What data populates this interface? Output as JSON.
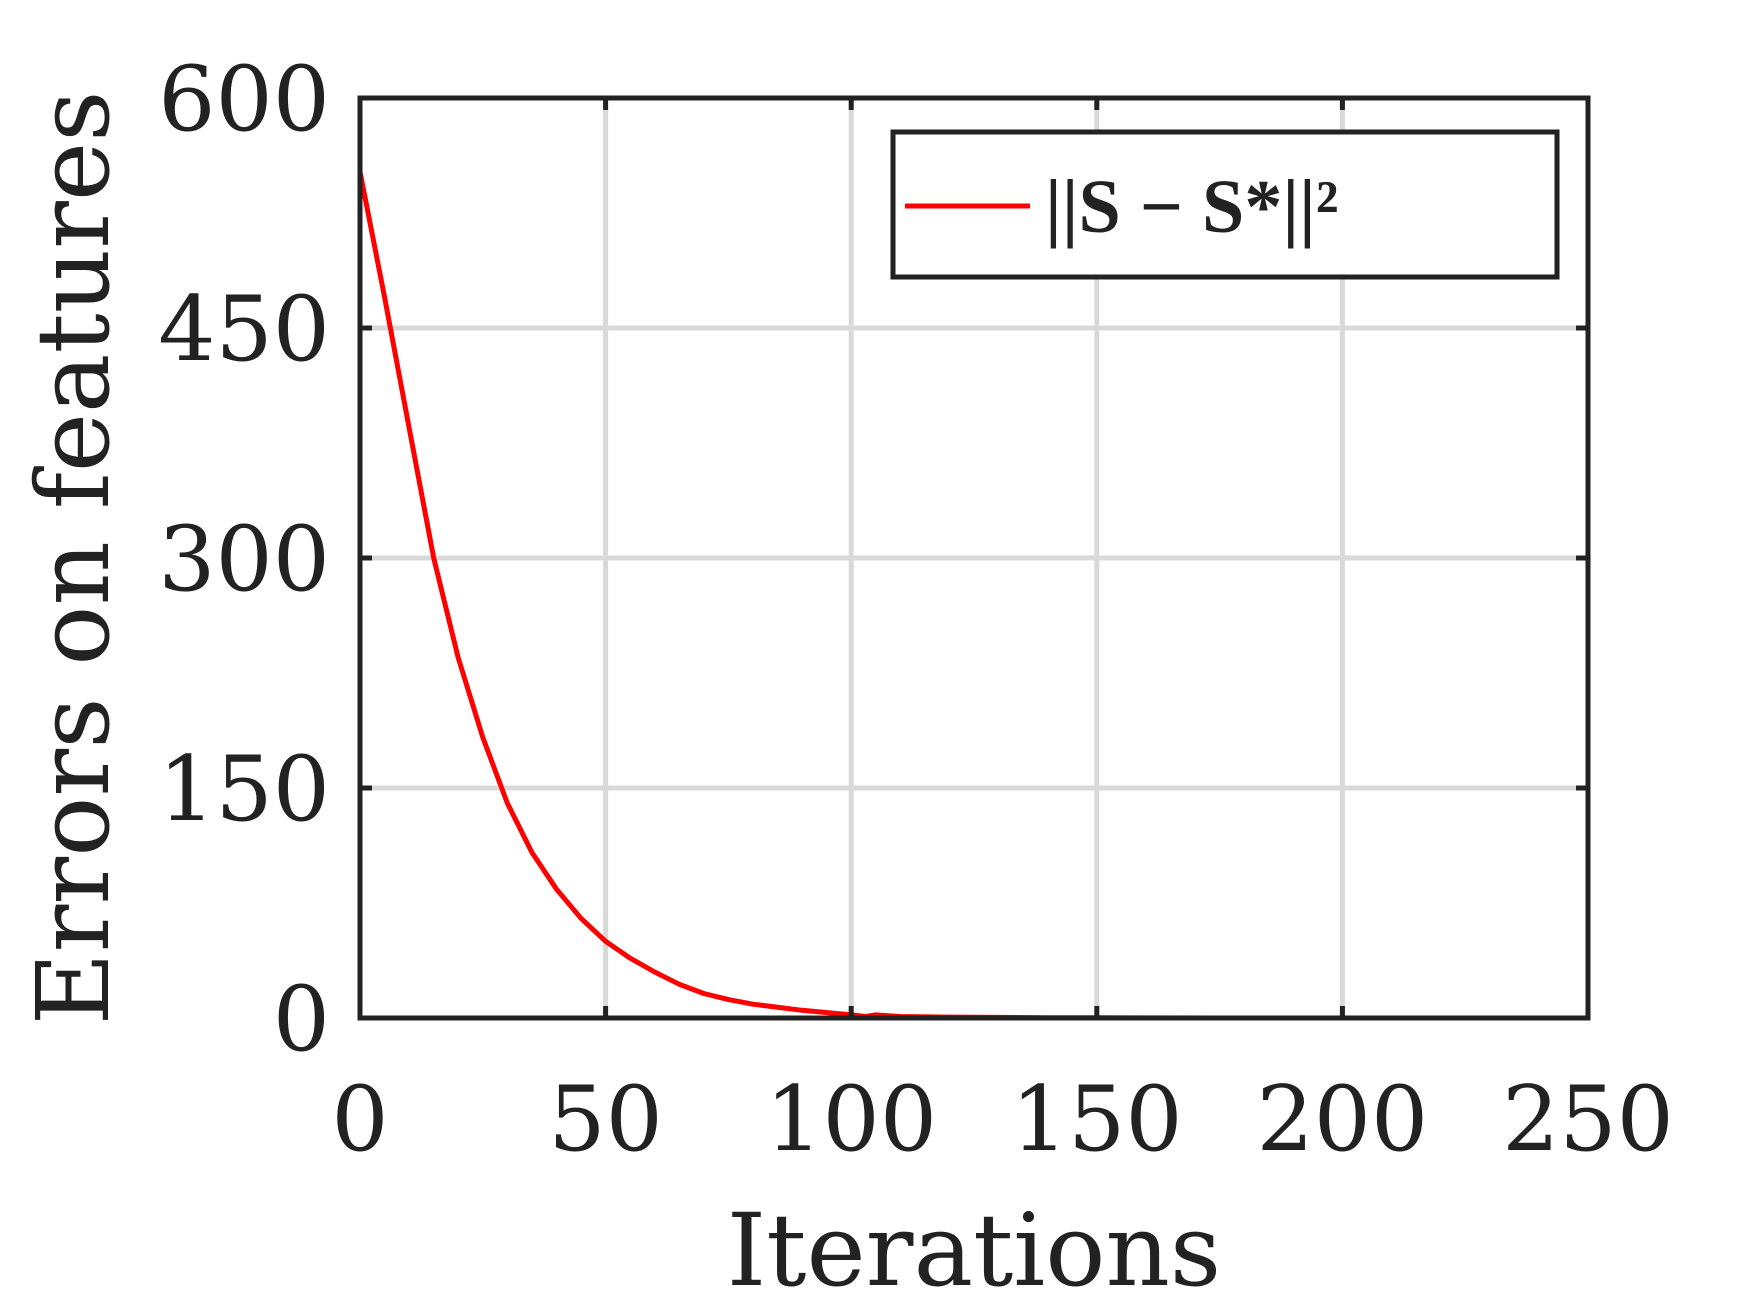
{
  "chart_data": {
    "type": "line",
    "xlabel": "Iterations",
    "ylabel": "Errors on features",
    "xlim": [
      0,
      250
    ],
    "ylim": [
      0,
      600
    ],
    "xticks": [
      0,
      50,
      100,
      150,
      200,
      250
    ],
    "yticks": [
      0,
      150,
      300,
      450,
      600
    ],
    "xtick_labels": [
      "0",
      "50",
      "100",
      "150",
      "200",
      "250"
    ],
    "ytick_labels": [
      "0",
      "150",
      "300",
      "450",
      "600"
    ],
    "grid": true,
    "legend_position": "top-right",
    "legend": [
      "||S − S*||²"
    ],
    "series": [
      {
        "name": "||S − S*||²",
        "color": "#ff0000",
        "x": [
          0,
          5,
          10,
          15,
          20,
          25,
          30,
          35,
          40,
          45,
          50,
          55,
          60,
          65,
          70,
          75,
          80,
          90,
          100,
          103,
          105,
          110,
          120,
          130,
          140,
          150,
          175,
          200,
          225
        ],
        "y": [
          552,
          470,
          385,
          300,
          235,
          183,
          140,
          108,
          84,
          65,
          50,
          39,
          30,
          22,
          16,
          12,
          9,
          5,
          2,
          1,
          2,
          1,
          0.6,
          0.4,
          0.2,
          0.1,
          0,
          0,
          0
        ]
      }
    ]
  }
}
